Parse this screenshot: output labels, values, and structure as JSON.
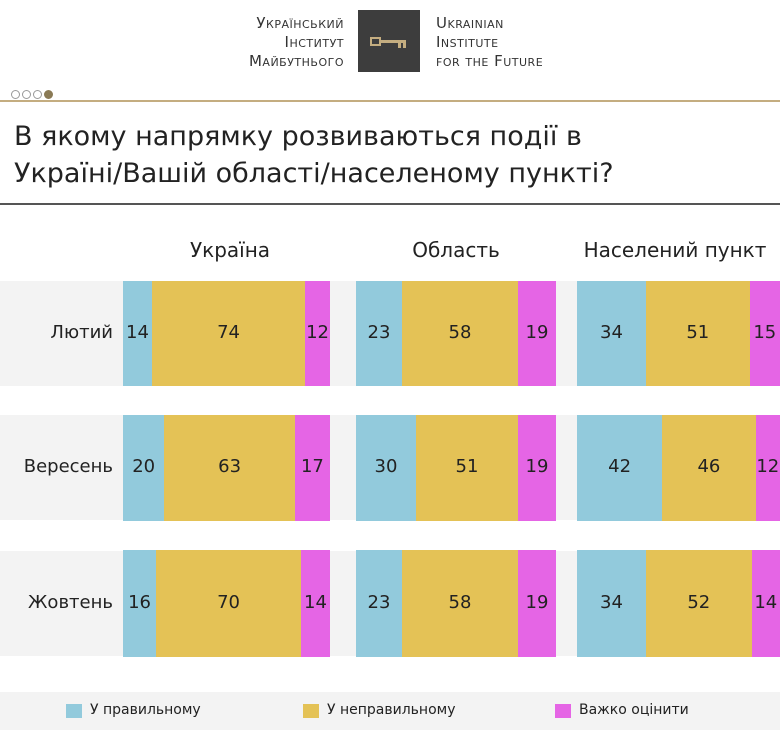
{
  "header": {
    "org_ua": [
      "Український",
      "Інститут",
      "Майбутнього"
    ],
    "org_en": [
      "Ukrainian",
      "Institute",
      "for the Future"
    ],
    "logo": "key-icon"
  },
  "pager": {
    "count": 4,
    "active": 4
  },
  "title": {
    "line1": "В якому напрямку розвиваються події в",
    "line2": "Україні/Вашій області/населеному пункті?"
  },
  "chart_data": {
    "type": "bar",
    "stacked": true,
    "orientation": "horizontal",
    "normalized": true,
    "panels": [
      "Україна",
      "Область",
      "Населений пункт"
    ],
    "categories": [
      "Лютий",
      "Вересень",
      "Жовтень"
    ],
    "series": [
      {
        "name": "У правильному",
        "color": "#92cadc",
        "values": [
          [
            14,
            23,
            34
          ],
          [
            20,
            30,
            42
          ],
          [
            16,
            23,
            34
          ]
        ]
      },
      {
        "name": "У неправильному",
        "color": "#e4c256",
        "values": [
          [
            74,
            58,
            51
          ],
          [
            63,
            51,
            46
          ],
          [
            70,
            58,
            52
          ]
        ]
      },
      {
        "name": "Важко оцінити",
        "color": "#e565e5",
        "values": [
          [
            12,
            19,
            15
          ],
          [
            17,
            19,
            12
          ],
          [
            14,
            19,
            14
          ]
        ]
      }
    ],
    "legend_position": "bottom",
    "grid": false
  }
}
